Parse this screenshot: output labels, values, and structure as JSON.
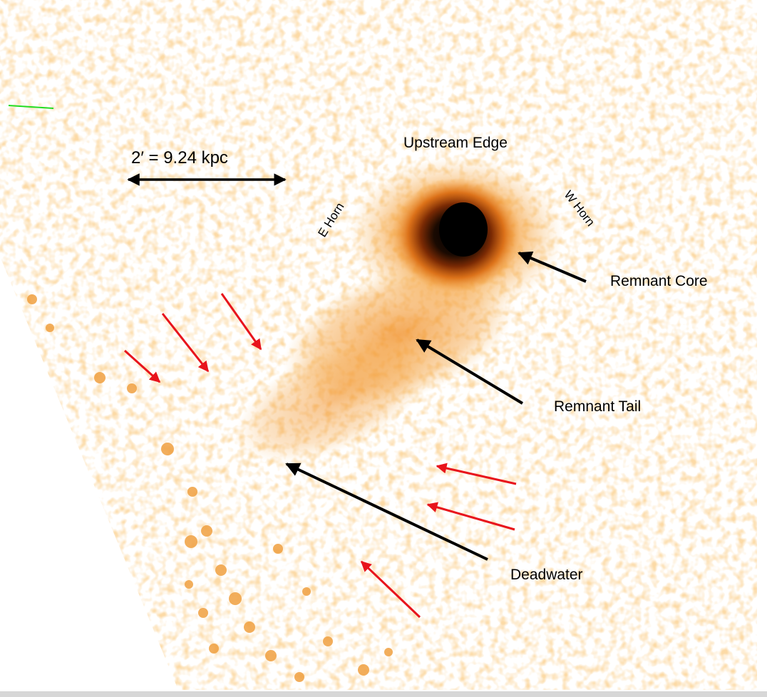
{
  "image": {
    "description_colors": {
      "background": "#ffffff",
      "emission_light": "#f7b860",
      "emission_mid": "#f08a1c",
      "emission_dark": "#b54a08",
      "core": "#000000"
    },
    "scale_bar": "2′ = 9.24 kpc",
    "annotations": {
      "upstream_edge": "Upstream Edge",
      "e_horn": "E Horn",
      "w_horn": "W Horn",
      "remnant_core": "Remnant Core",
      "remnant_tail": "Remnant Tail",
      "deadwater": "Deadwater"
    },
    "arrow_colors": {
      "primary": "#000000",
      "secondary": "#e8141c",
      "marker": "#22dd22"
    }
  }
}
